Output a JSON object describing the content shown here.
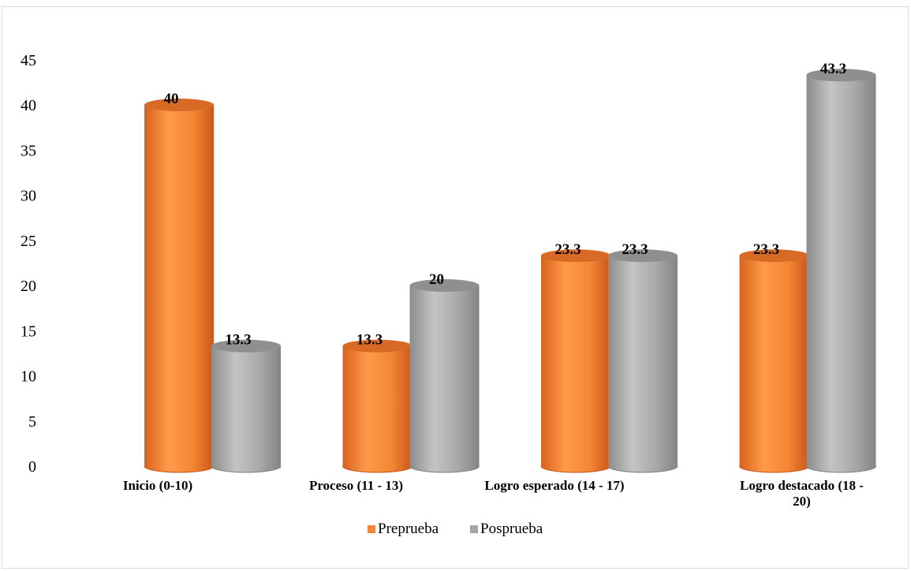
{
  "chart_data": {
    "type": "bar",
    "title": "",
    "xlabel": "",
    "ylabel": "",
    "ylim": [
      0,
      45
    ],
    "yticks": [
      0,
      5,
      10,
      15,
      20,
      25,
      30,
      35,
      40,
      45
    ],
    "grid": false,
    "legend_position": "bottom",
    "style": "3d-cylinder",
    "categories": [
      "Inicio (0-10)",
      "Proceso (11 - 13)",
      "Logro esperado (14 - 17)",
      "Logro destacado (18 - 20)"
    ],
    "series": [
      {
        "name": "Preprueba",
        "values": [
          40,
          13.3,
          23.3,
          23.3
        ],
        "labels": [
          "40",
          "13.3",
          "23.3",
          "23.3"
        ],
        "color": "#f58634"
      },
      {
        "name": "Posprueba",
        "values": [
          13.3,
          20,
          23.3,
          43.3
        ],
        "labels": [
          "13.3",
          "20",
          "23.3",
          "43.3"
        ],
        "color": "#a5a5a5"
      }
    ]
  }
}
